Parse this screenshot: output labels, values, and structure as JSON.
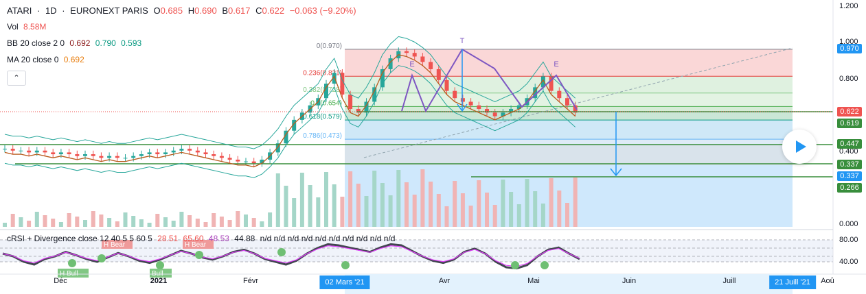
{
  "header": {
    "symbol": "ATARI",
    "interval": "1D",
    "exchange": "EURONEXT PARIS",
    "o_label": "O",
    "o": "0.685",
    "h_label": "H",
    "h": "0.690",
    "l_label": "B",
    "l": "0.617",
    "c_label": "C",
    "c": "0.622",
    "change": "−0.063 (−9.20%)"
  },
  "indicators": {
    "vol": {
      "label": "Vol",
      "value": "8.58M"
    },
    "bb": {
      "label": "BB 20 close 2 0",
      "basis": "0.692",
      "upper": "0.790",
      "lower": "0.593"
    },
    "ma": {
      "label": "MA 20 close 0",
      "value": "0.692"
    },
    "rsi": {
      "label": "cRSI + Divergence close 12 40 5 5 60 5",
      "v1": "28.51",
      "v2": "65.60",
      "v3": "48.53",
      "v4": "44.88",
      "nd": "n/d n/d n/d n/d n/d n/d n/d n/d n/d n/d"
    }
  },
  "collapse_icon": "chevron-up-icon",
  "price_axis": [
    "1.200",
    "1.000",
    "0.800",
    "0.400",
    "0.000"
  ],
  "rsi_axis": [
    "80.00",
    "40.00"
  ],
  "price_tags": [
    {
      "value": "0.970",
      "color": "#2196f3"
    },
    {
      "value": "0.622",
      "color": "#ef5350"
    },
    {
      "value": "0.619",
      "color": "#388e3c"
    },
    {
      "value": "0.447",
      "color": "#388e3c"
    },
    {
      "value": "0.337",
      "color": "#388e3c"
    },
    {
      "value": "0.337",
      "color": "#2196f3"
    },
    {
      "value": "0.266",
      "color": "#388e3c"
    }
  ],
  "x_axis": {
    "labels": [
      "Déc",
      "2021",
      "Févr",
      "Avr",
      "Mai",
      "Juin",
      "Juill",
      "Aoû"
    ],
    "selected_start": "02 Mars '21",
    "selected_end": "21 Juill '21"
  },
  "fib": [
    {
      "label": "0(0.970)",
      "color": "#787b86"
    },
    {
      "label": "0.236(0.821)",
      "color": "#e53935"
    },
    {
      "label": "0.382(0.728)",
      "color": "#81c784"
    },
    {
      "label": "0.5(0.654)",
      "color": "#4caf50"
    },
    {
      "label": "0.618(0.579)",
      "color": "#089981"
    },
    {
      "label": "0.786(0.473)",
      "color": "#64b5f6"
    }
  ],
  "pattern_labels": [
    "E",
    "T",
    "E"
  ],
  "rsi_signals": [
    "H Bear",
    "H Bear",
    "H Bull",
    "Bull"
  ],
  "chart_data": {
    "type": "candlestick",
    "series_close": [
      0.42,
      0.41,
      0.41,
      0.4,
      0.41,
      0.4,
      0.39,
      0.4,
      0.39,
      0.38,
      0.39,
      0.38,
      0.37,
      0.38,
      0.37,
      0.37,
      0.38,
      0.39,
      0.4,
      0.39,
      0.4,
      0.41,
      0.42,
      0.41,
      0.4,
      0.39,
      0.38,
      0.37,
      0.36,
      0.35,
      0.35,
      0.34,
      0.36,
      0.4,
      0.45,
      0.52,
      0.58,
      0.62,
      0.66,
      0.7,
      0.78,
      0.84,
      0.72,
      0.64,
      0.62,
      0.68,
      0.76,
      0.86,
      0.92,
      0.96,
      0.95,
      0.93,
      0.9,
      0.86,
      0.8,
      0.74,
      0.7,
      0.68,
      0.66,
      0.64,
      0.62,
      0.6,
      0.62,
      0.64,
      0.66,
      0.7,
      0.76,
      0.82,
      0.74,
      0.7,
      0.66,
      0.62
    ],
    "ylim": [
      0,
      1.2
    ],
    "levels": [
      0.97,
      0.821,
      0.728,
      0.654,
      0.579,
      0.473,
      0.447,
      0.337,
      0.266
    ],
    "rsi": [
      55,
      50,
      40,
      35,
      45,
      50,
      58,
      52,
      45,
      40,
      48,
      56,
      50,
      42,
      38,
      44,
      52,
      60,
      55,
      48,
      44,
      50,
      58,
      62,
      55,
      45,
      40,
      35,
      42,
      55,
      65,
      72,
      70,
      66,
      62,
      58,
      66,
      72,
      70,
      60,
      50,
      42,
      38,
      44,
      58,
      64,
      55,
      40,
      30,
      28,
      34,
      50,
      62,
      66,
      55,
      45
    ],
    "rsi_ylim": [
      20,
      100
    ]
  }
}
